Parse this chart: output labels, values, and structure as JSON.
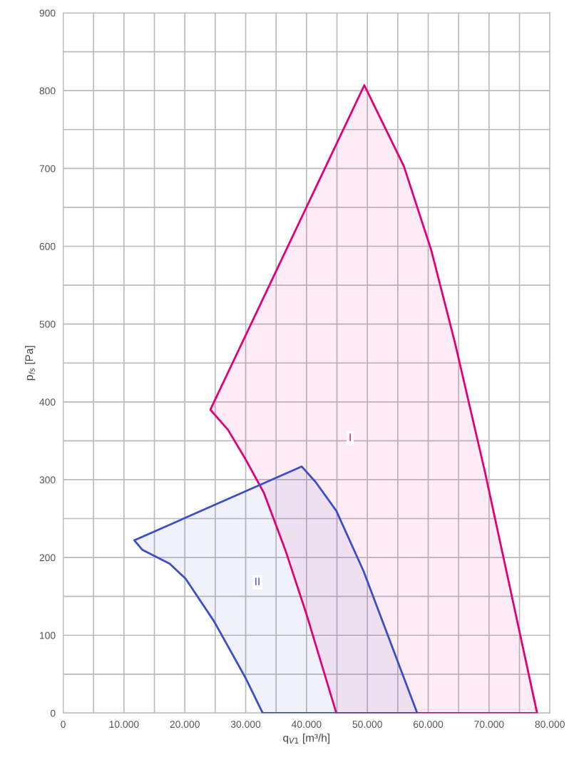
{
  "chart_data": {
    "type": "area",
    "xlabel": "q$_{V1}$ [m³/h]",
    "ylabel": "p$_{fs}$ [Pa]",
    "xlim": [
      0,
      80000
    ],
    "ylim": [
      0,
      900
    ],
    "xticks": [
      0,
      {
        "value": 5000,
        "label": null
      },
      {
        "value": 10000,
        "label": "10.000"
      },
      {
        "value": 15000,
        "label": null
      },
      {
        "value": 20000,
        "label": "20.000"
      },
      {
        "value": 25000,
        "label": null
      },
      {
        "value": 30000,
        "label": "30.000"
      },
      {
        "value": 35000,
        "label": null
      },
      {
        "value": 40000,
        "label": "40.000"
      },
      {
        "value": 45000,
        "label": null
      },
      {
        "value": 50000,
        "label": "50.000"
      },
      {
        "value": 55000,
        "label": null
      },
      {
        "value": 60000,
        "label": "60.000"
      },
      {
        "value": 65000,
        "label": null
      },
      {
        "value": 70000,
        "label": "70.000"
      },
      {
        "value": 75000,
        "label": null
      },
      {
        "value": 80000,
        "label": "80.000"
      }
    ],
    "yticks": [
      0,
      {
        "value": 50,
        "label": null
      },
      100,
      {
        "value": 150,
        "label": null
      },
      200,
      {
        "value": 250,
        "label": null
      },
      300,
      {
        "value": 350,
        "label": null
      },
      400,
      {
        "value": 450,
        "label": null
      },
      500,
      {
        "value": 550,
        "label": null
      },
      600,
      {
        "value": 650,
        "label": null
      },
      700,
      {
        "value": 750,
        "label": null
      },
      800,
      {
        "value": 850,
        "label": null
      },
      900
    ],
    "grid": true,
    "series": [
      {
        "name": "I",
        "color": "#e2007a",
        "x": [
          24200,
          49500,
          56000,
          60500,
          64400,
          69300,
          77900,
          44900,
          40000,
          36500,
          33000,
          30000,
          27100
        ],
        "values": [
          390,
          807,
          703,
          595,
          476,
          311,
          0,
          0,
          127,
          210,
          283,
          326,
          364
        ]
      },
      {
        "name": "II",
        "color": "#3a4fc8",
        "x": [
          11700,
          39200,
          41500,
          44900,
          49400,
          58200,
          32800,
          30000,
          24800,
          20100,
          17500,
          13000
        ],
        "values": [
          222,
          317,
          297,
          260,
          182,
          0,
          0,
          45,
          118,
          173,
          192,
          210
        ]
      }
    ]
  }
}
